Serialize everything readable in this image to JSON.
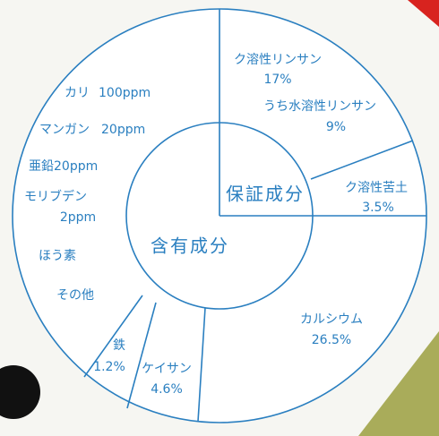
{
  "guaranteed": {
    "label": "保証成分",
    "items": [
      {
        "name": "ク溶性リンサン",
        "value": "17%"
      },
      {
        "name": "うち水溶性リンサン",
        "value": "9%"
      },
      {
        "name": "ク溶性苦土",
        "value": "3.5%"
      }
    ]
  },
  "contained": {
    "label": "含有成分",
    "items": [
      {
        "name": "カルシウム",
        "value": "26.5%"
      },
      {
        "name": "ケイサン",
        "value": "4.6%"
      },
      {
        "name": "鉄",
        "value": "1.2%"
      },
      {
        "name": "その他"
      },
      {
        "name": "ほう素"
      },
      {
        "name": "モリブデン",
        "value": "2ppm"
      },
      {
        "name": "亜鉛",
        "value": "20ppm"
      },
      {
        "name": "マンガン",
        "value": "20ppm"
      },
      {
        "name": "カリ",
        "value": "100ppm"
      }
    ]
  }
}
